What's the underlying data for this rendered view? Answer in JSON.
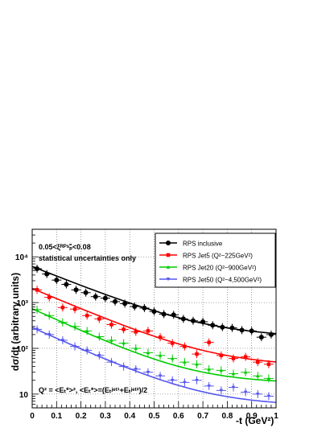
{
  "chart_data": {
    "type": "scatter",
    "xlabel": "-t (GeV²)",
    "ylabel": "dσ/dt (arbitrary units)",
    "xlim": [
      0,
      1
    ],
    "ylim": [
      5,
      40000
    ],
    "yscale": "log",
    "grid": true,
    "legend_position": "top-right",
    "x_ticks": [
      0,
      0.1,
      0.2,
      0.3,
      0.4,
      0.5,
      0.6,
      0.7,
      0.8,
      0.9,
      1
    ],
    "x_tick_labels": [
      "0",
      "0.1",
      "0.2",
      "0.3",
      "0.4",
      "0.5",
      "0.6",
      "0.7",
      "0.8",
      "0.9",
      "1"
    ],
    "y_ticks": [
      10,
      100,
      1000,
      10000
    ],
    "y_tick_labels": [
      "10",
      "10²",
      "10³",
      "10⁴"
    ],
    "annotations": {
      "cut": "0.05<ξᴿᴾˢₚ̄<0.08",
      "note": "statistical uncertainties only",
      "q2_def": "Q² = <Eₜ*>²,  <Eₜ*>=(Eₜʲᵉᵗ¹+Eₜʲᵉᵗ²)/2"
    },
    "series": [
      {
        "name": "RPS inclusive",
        "color": "#000000",
        "marker": "circle",
        "x": [
          0.02,
          0.06,
          0.1,
          0.14,
          0.18,
          0.22,
          0.26,
          0.3,
          0.34,
          0.38,
          0.42,
          0.46,
          0.5,
          0.54,
          0.58,
          0.62,
          0.66,
          0.7,
          0.74,
          0.78,
          0.82,
          0.86,
          0.9,
          0.94,
          0.98
        ],
        "y": [
          5500,
          4200,
          3100,
          2500,
          1900,
          1650,
          1350,
          1250,
          1050,
          950,
          820,
          760,
          640,
          560,
          540,
          440,
          400,
          380,
          320,
          290,
          280,
          250,
          240,
          175,
          200
        ],
        "fit": [
          6000,
          0.2,
          170
        ]
      },
      {
        "name": "RPS Jet5 (Q²~225GeV²)",
        "color": "#ff0000",
        "marker": "square",
        "x": [
          0.02,
          0.07,
          0.125,
          0.175,
          0.225,
          0.275,
          0.325,
          0.375,
          0.425,
          0.475,
          0.525,
          0.575,
          0.625,
          0.675,
          0.725,
          0.775,
          0.825,
          0.875,
          0.925,
          0.97
        ],
        "y": [
          1900,
          1300,
          780,
          720,
          520,
          440,
          330,
          260,
          230,
          240,
          175,
          130,
          110,
          75,
          135,
          70,
          60,
          65,
          50,
          45
        ],
        "fit": [
          2000,
          0.19,
          40
        ]
      },
      {
        "name": "RPS Jet20 (Q²~900GeV²)",
        "color": "#00cc00",
        "marker": "triangle-up",
        "x": [
          0.02,
          0.07,
          0.125,
          0.175,
          0.225,
          0.275,
          0.325,
          0.375,
          0.425,
          0.475,
          0.525,
          0.575,
          0.625,
          0.675,
          0.725,
          0.775,
          0.825,
          0.875,
          0.925,
          0.97
        ],
        "y": [
          700,
          520,
          370,
          300,
          240,
          180,
          150,
          130,
          100,
          80,
          70,
          60,
          50,
          45,
          35,
          33,
          28,
          30,
          25,
          22
        ],
        "fit": [
          720,
          0.175,
          17
        ]
      },
      {
        "name": "RPS Jet50 (Q²~4,500GeV²)",
        "color": "#5555ee",
        "marker": "triangle-down",
        "x": [
          0.02,
          0.07,
          0.125,
          0.175,
          0.225,
          0.275,
          0.325,
          0.375,
          0.425,
          0.475,
          0.525,
          0.575,
          0.625,
          0.675,
          0.725,
          0.775,
          0.825,
          0.875,
          0.925,
          0.97
        ],
        "y": [
          260,
          200,
          150,
          110,
          90,
          70,
          50,
          40,
          35,
          30,
          25,
          20,
          18,
          20,
          15,
          12,
          14,
          11,
          10,
          9
        ],
        "fit": [
          280,
          0.18,
          5.5
        ]
      }
    ]
  }
}
